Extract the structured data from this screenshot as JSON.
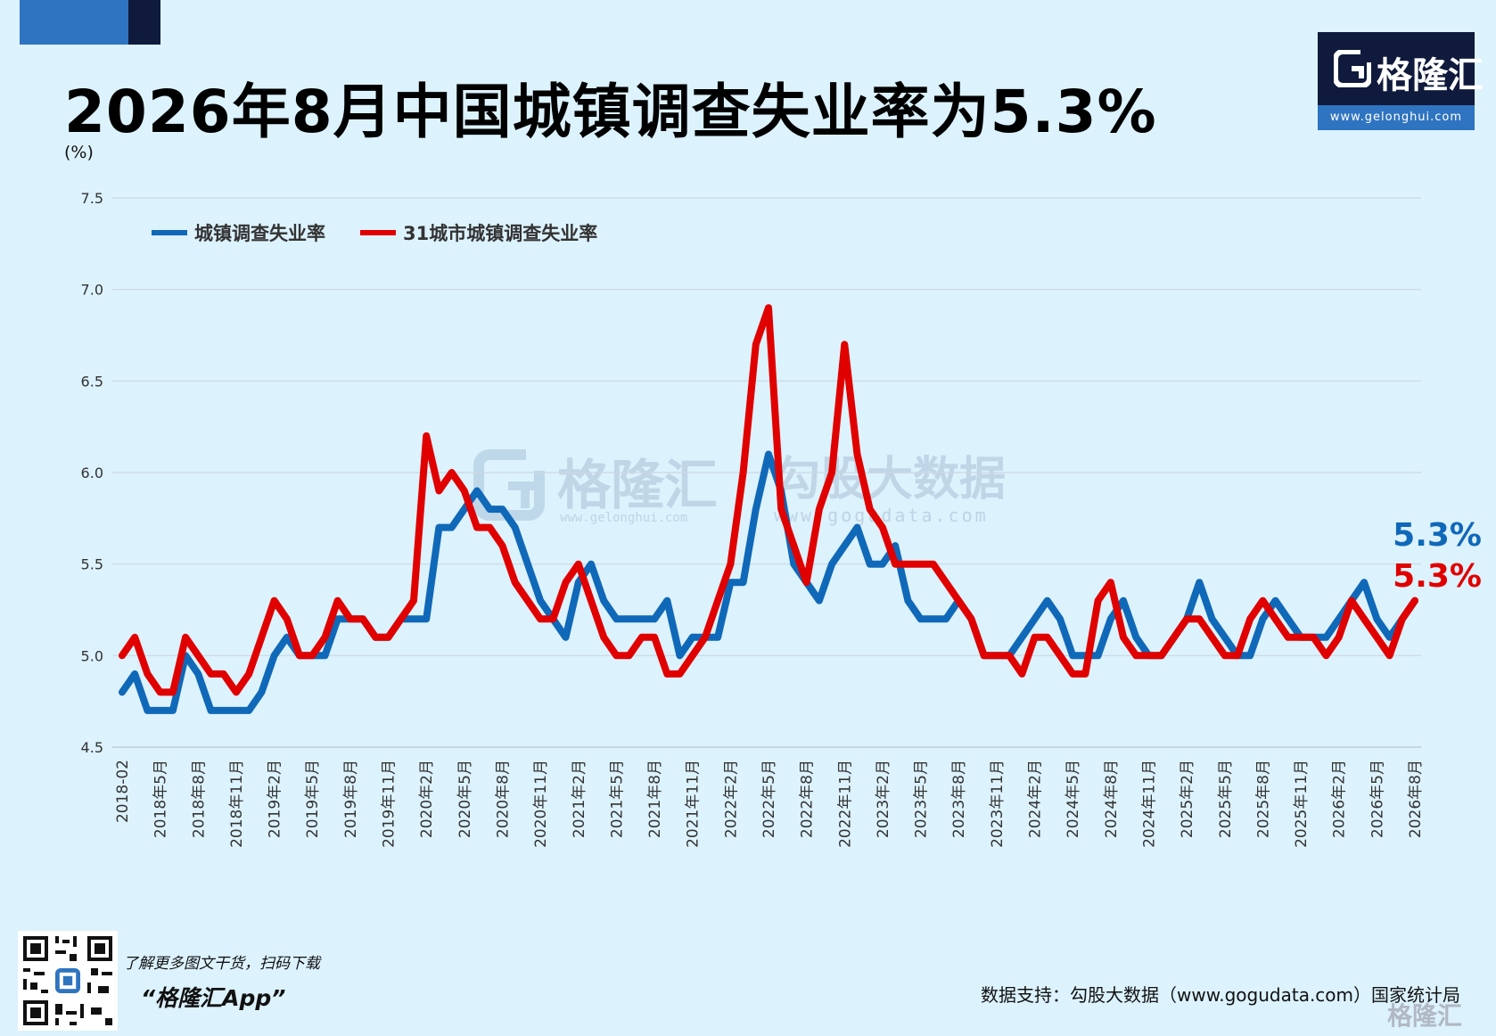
{
  "header": {
    "title": "2026年8月中国城镇调查失业率为5.3%",
    "unit": "(%)"
  },
  "logo": {
    "name": "格隆汇",
    "url": "www.gelonghui.com",
    "icon": "gelonghui-g-logo-icon"
  },
  "watermark": {
    "brand1": "格隆汇",
    "brand1_url": "www.gelonghui.com",
    "brand2": "勾股大数据",
    "brand2_url": "www.gogudata.com"
  },
  "colors": {
    "background": "#dcf2fd",
    "series_blue": "#1068b8",
    "series_red": "#e00000",
    "brand_dark": "#0f1a3c",
    "brand_light": "#2f74c0"
  },
  "chart_data": {
    "type": "line",
    "title": "2026年8月中国城镇调查失业率为5.3%",
    "ylabel": "(%)",
    "ylim": [
      4.5,
      7.5
    ],
    "yticks": [
      "4.5",
      "5.0",
      "5.5",
      "6.0",
      "6.5",
      "7.0",
      "7.5"
    ],
    "grid": true,
    "legend_position": "top-left",
    "x": [
      "2018-02",
      "2018年3月",
      "2018年4月",
      "2018年5月",
      "2018年6月",
      "2018年7月",
      "2018年8月",
      "2018年9月",
      "2018年10月",
      "2018年11月",
      "2018年12月",
      "2019年1月",
      "2019年2月",
      "2019年3月",
      "2019年4月",
      "2019年5月",
      "2019年6月",
      "2019年7月",
      "2019年8月",
      "2019年9月",
      "2019年10月",
      "2019年11月",
      "2019年12月",
      "2020年1月",
      "2020年2月",
      "2020年3月",
      "2020年4月",
      "2020年5月",
      "2020年6月",
      "2020年7月",
      "2020年8月",
      "2020年9月",
      "2020年10月",
      "2020年11月",
      "2020年12月",
      "2021年1月",
      "2021年2月",
      "2021年3月",
      "2021年4月",
      "2021年5月",
      "2021年6月",
      "2021年7月",
      "2021年8月",
      "2021年9月",
      "2021年10月",
      "2021年11月",
      "2021年12月",
      "2022年1月",
      "2022年2月",
      "2022年3月",
      "2022年4月",
      "2022年5月",
      "2022年6月",
      "2022年7月",
      "2022年8月",
      "2022年9月",
      "2022年10月",
      "2022年11月",
      "2022年12月",
      "2023年1月",
      "2023年2月",
      "2023年3月",
      "2023年4月",
      "2023年5月",
      "2023年6月",
      "2023年7月",
      "2023年8月",
      "2023年9月",
      "2023年10月",
      "2023年11月",
      "2023年12月",
      "2024年1月",
      "2024年2月",
      "2024年3月",
      "2024年4月",
      "2024年5月",
      "2024年6月",
      "2024年7月",
      "2024年8月",
      "2024年9月",
      "2024年10月",
      "2024年11月",
      "2024年12月",
      "2025年1月",
      "2025年2月",
      "2025年3月",
      "2025年4月",
      "2025年5月",
      "2025年6月",
      "2025年7月",
      "2025年8月",
      "2025年9月",
      "2025年10月",
      "2025年11月",
      "2025年12月",
      "2026年1月",
      "2026年2月",
      "2026年3月",
      "2026年4月",
      "2026年5月",
      "2026年6月",
      "2026年7月",
      "2026年8月"
    ],
    "xtick_labels": [
      "2018-02",
      "2018年5月",
      "2018年8月",
      "2018年11月",
      "2019年2月",
      "2019年5月",
      "2019年8月",
      "2019年11月",
      "2020年2月",
      "2020年5月",
      "2020年8月",
      "2020年11月",
      "2021年2月",
      "2021年5月",
      "2021年8月",
      "2021年11月",
      "2022年2月",
      "2022年5月",
      "2022年8月",
      "2022年11月",
      "2023年2月",
      "2023年5月",
      "2023年8月",
      "2023年11月",
      "2024年2月",
      "2024年5月",
      "2024年8月",
      "2024年11月",
      "2025年2月",
      "2025年5月",
      "2025年8月",
      "2025年11月",
      "2026年2月",
      "2026年5月",
      "2026年8月"
    ],
    "series": [
      {
        "name": "城镇调查失业率",
        "color": "#1068b8",
        "end_label": "5.3%",
        "values": [
          4.8,
          4.9,
          4.7,
          4.7,
          4.7,
          5.0,
          4.9,
          4.7,
          4.7,
          4.7,
          4.7,
          4.8,
          5.0,
          5.1,
          5.0,
          5.0,
          5.0,
          5.2,
          5.2,
          5.2,
          5.1,
          5.1,
          5.2,
          5.2,
          5.2,
          5.7,
          5.7,
          5.8,
          5.9,
          5.8,
          5.8,
          5.7,
          5.5,
          5.3,
          5.2,
          5.1,
          5.4,
          5.5,
          5.3,
          5.2,
          5.2,
          5.2,
          5.2,
          5.3,
          5.0,
          5.1,
          5.1,
          5.1,
          5.4,
          5.4,
          5.8,
          6.1,
          5.9,
          5.5,
          5.4,
          5.3,
          5.5,
          5.6,
          5.7,
          5.5,
          5.5,
          5.6,
          5.3,
          5.2,
          5.2,
          5.2,
          5.3,
          5.2,
          5.0,
          5.0,
          5.0,
          5.1,
          5.2,
          5.3,
          5.2,
          5.0,
          5.0,
          5.0,
          5.2,
          5.3,
          5.1,
          5.0,
          5.0,
          5.1,
          5.2,
          5.4,
          5.2,
          5.1,
          5.0,
          5.0,
          5.2,
          5.3,
          5.2,
          5.1,
          5.1,
          5.1,
          5.2,
          5.3,
          5.4,
          5.2,
          5.1,
          5.2,
          5.3
        ]
      },
      {
        "name": "31城市城镇调查失业率",
        "color": "#e00000",
        "end_label": "5.3%",
        "values": [
          5.0,
          5.1,
          4.9,
          4.8,
          4.8,
          5.1,
          5.0,
          4.9,
          4.9,
          4.8,
          4.9,
          5.1,
          5.3,
          5.2,
          5.0,
          5.0,
          5.1,
          5.3,
          5.2,
          5.2,
          5.1,
          5.1,
          5.2,
          5.3,
          6.2,
          5.9,
          6.0,
          5.9,
          5.7,
          5.7,
          5.6,
          5.4,
          5.3,
          5.2,
          5.2,
          5.4,
          5.5,
          5.3,
          5.1,
          5.0,
          5.0,
          5.1,
          5.1,
          4.9,
          4.9,
          5.0,
          5.1,
          5.3,
          5.5,
          6.0,
          6.7,
          6.9,
          5.8,
          5.6,
          5.4,
          5.8,
          6.0,
          6.7,
          6.1,
          5.8,
          5.7,
          5.5,
          5.5,
          5.5,
          5.5,
          5.4,
          5.3,
          5.2,
          5.0,
          5.0,
          5.0,
          4.9,
          5.1,
          5.1,
          5.0,
          4.9,
          4.9,
          5.3,
          5.4,
          5.1,
          5.0,
          5.0,
          5.0,
          5.1,
          5.2,
          5.2,
          5.1,
          5.0,
          5.0,
          5.2,
          5.3,
          5.2,
          5.1,
          5.1,
          5.1,
          5.0,
          5.1,
          5.3,
          5.2,
          5.1,
          5.0,
          5.2,
          5.3
        ]
      }
    ]
  },
  "footer": {
    "promo_line1": "了解更多图文干货，扫码下载",
    "promo_line2": "“格隆汇App”",
    "source": "数据支持：勾股大数据（www.gogudata.com）国家统计局",
    "corner_logo": "格隆汇",
    "qr_icon": "qr-code-icon"
  }
}
